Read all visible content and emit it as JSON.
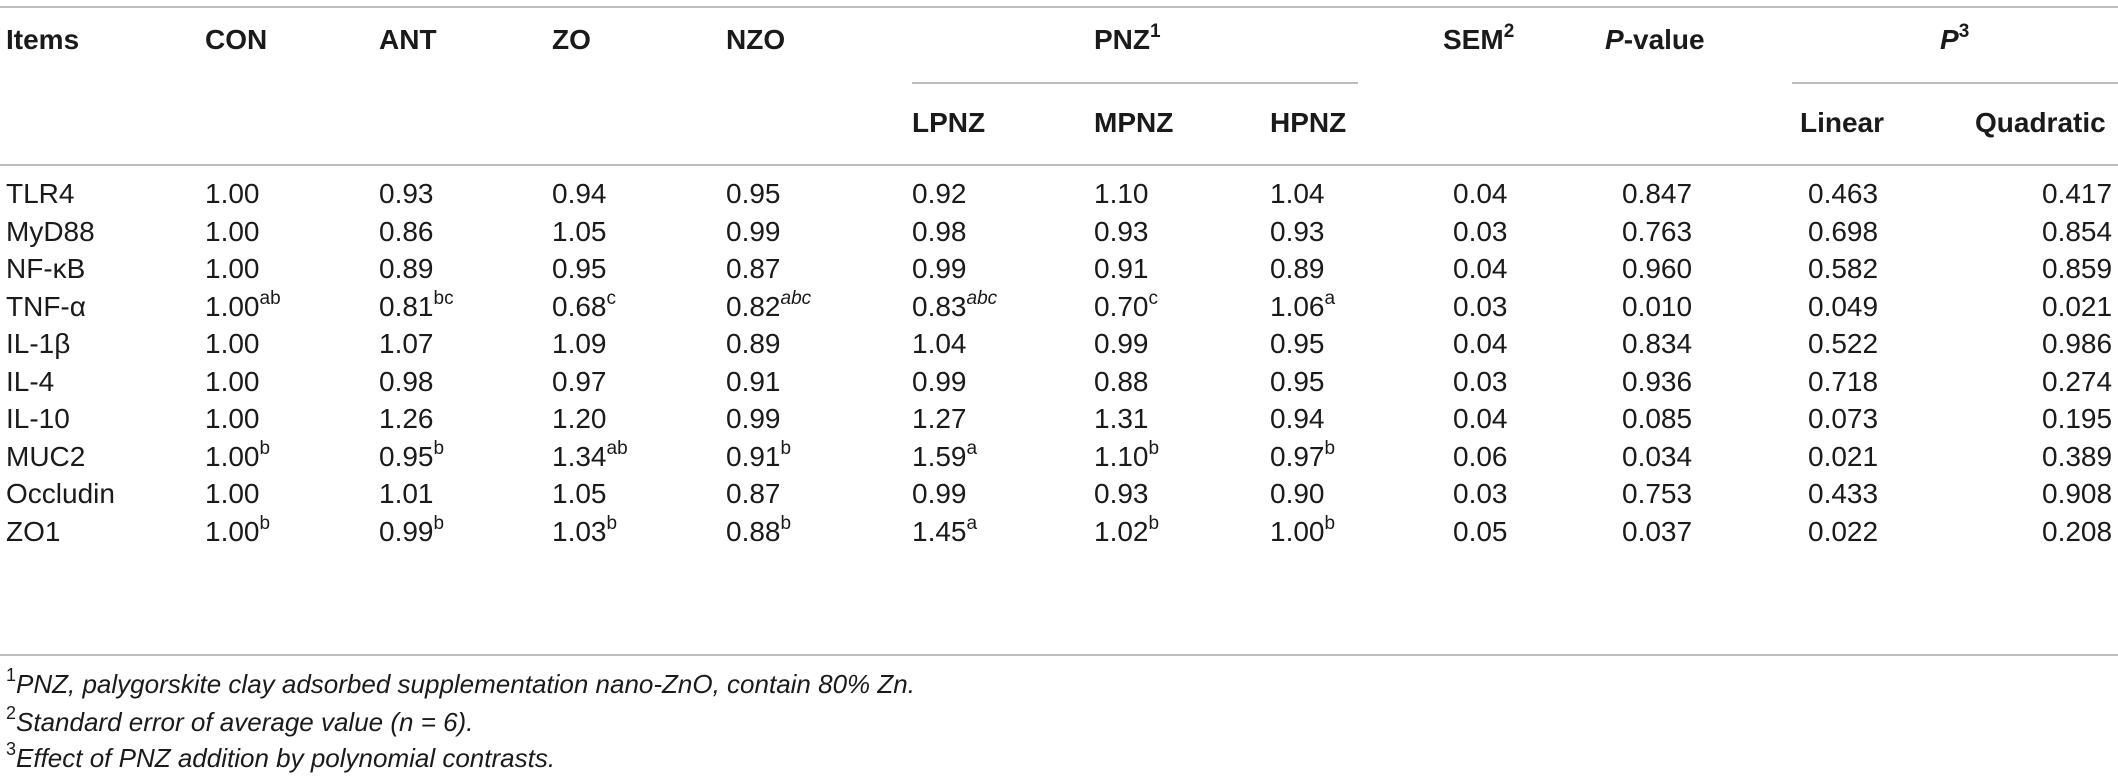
{
  "table": {
    "headers": {
      "items": "Items",
      "con": "CON",
      "ant": "ANT",
      "zo": "ZO",
      "nzo": "NZO",
      "pnz": "PNZ",
      "pnz_sup": "1",
      "sem": "SEM",
      "sem_sup": "2",
      "pvalue_p": "P",
      "pvalue_rest": "-value",
      "p3": "P",
      "p3_sup": "3",
      "lpnz": "LPNZ",
      "mpnz": "MPNZ",
      "hpnz": "HPNZ",
      "linear": "Linear",
      "quadratic": "Quadratic"
    },
    "rows": [
      {
        "item": "TLR4",
        "vals": [
          [
            "1.00",
            ""
          ],
          [
            "0.93",
            ""
          ],
          [
            "0.94",
            ""
          ],
          [
            "0.95",
            ""
          ],
          [
            "0.92",
            ""
          ],
          [
            "1.10",
            ""
          ],
          [
            "1.04",
            ""
          ]
        ],
        "sem": "0.04",
        "p": "0.847",
        "lin": "0.463",
        "quad": "0.417"
      },
      {
        "item": "MyD88",
        "vals": [
          [
            "1.00",
            ""
          ],
          [
            "0.86",
            ""
          ],
          [
            "1.05",
            ""
          ],
          [
            "0.99",
            ""
          ],
          [
            "0.98",
            ""
          ],
          [
            "0.93",
            ""
          ],
          [
            "0.93",
            ""
          ]
        ],
        "sem": "0.03",
        "p": "0.763",
        "lin": "0.698",
        "quad": "0.854"
      },
      {
        "item": "NF-κB",
        "vals": [
          [
            "1.00",
            ""
          ],
          [
            "0.89",
            ""
          ],
          [
            "0.95",
            ""
          ],
          [
            "0.87",
            ""
          ],
          [
            "0.99",
            ""
          ],
          [
            "0.91",
            ""
          ],
          [
            "0.89",
            ""
          ]
        ],
        "sem": "0.04",
        "p": "0.960",
        "lin": "0.582",
        "quad": "0.859"
      },
      {
        "item": "TNF-α",
        "vals": [
          [
            "1.00",
            "ab"
          ],
          [
            "0.81",
            "bc"
          ],
          [
            "0.68",
            "c"
          ],
          [
            "0.82",
            "abc"
          ],
          [
            "0.83",
            "abc"
          ],
          [
            "0.70",
            "c"
          ],
          [
            "1.06",
            "a"
          ]
        ],
        "sem": "0.03",
        "p": "0.010",
        "lin": "0.049",
        "quad": "0.021"
      },
      {
        "item": "IL-1β",
        "vals": [
          [
            "1.00",
            ""
          ],
          [
            "1.07",
            ""
          ],
          [
            "1.09",
            ""
          ],
          [
            "0.89",
            ""
          ],
          [
            "1.04",
            ""
          ],
          [
            "0.99",
            ""
          ],
          [
            "0.95",
            ""
          ]
        ],
        "sem": "0.04",
        "p": "0.834",
        "lin": "0.522",
        "quad": "0.986"
      },
      {
        "item": "IL-4",
        "vals": [
          [
            "1.00",
            ""
          ],
          [
            "0.98",
            ""
          ],
          [
            "0.97",
            ""
          ],
          [
            "0.91",
            ""
          ],
          [
            "0.99",
            ""
          ],
          [
            "0.88",
            ""
          ],
          [
            "0.95",
            ""
          ]
        ],
        "sem": "0.03",
        "p": "0.936",
        "lin": "0.718",
        "quad": "0.274"
      },
      {
        "item": "IL-10",
        "vals": [
          [
            "1.00",
            ""
          ],
          [
            "1.26",
            ""
          ],
          [
            "1.20",
            ""
          ],
          [
            "0.99",
            ""
          ],
          [
            "1.27",
            ""
          ],
          [
            "1.31",
            ""
          ],
          [
            "0.94",
            ""
          ]
        ],
        "sem": "0.04",
        "p": "0.085",
        "lin": "0.073",
        "quad": "0.195"
      },
      {
        "item": "MUC2",
        "vals": [
          [
            "1.00",
            "b"
          ],
          [
            "0.95",
            "b"
          ],
          [
            "1.34",
            "ab"
          ],
          [
            "0.91",
            "b"
          ],
          [
            "1.59",
            "a"
          ],
          [
            "1.10",
            "b"
          ],
          [
            "0.97",
            "b"
          ]
        ],
        "sem": "0.06",
        "p": "0.034",
        "lin": "0.021",
        "quad": "0.389"
      },
      {
        "item": "Occludin",
        "vals": [
          [
            "1.00",
            ""
          ],
          [
            "1.01",
            ""
          ],
          [
            "1.05",
            ""
          ],
          [
            "0.87",
            ""
          ],
          [
            "0.99",
            ""
          ],
          [
            "0.93",
            ""
          ],
          [
            "0.90",
            ""
          ]
        ],
        "sem": "0.03",
        "p": "0.753",
        "lin": "0.433",
        "quad": "0.908"
      },
      {
        "item": "ZO1",
        "vals": [
          [
            "1.00",
            "b"
          ],
          [
            "0.99",
            "b"
          ],
          [
            "1.03",
            "b"
          ],
          [
            "0.88",
            "b"
          ],
          [
            "1.45",
            "a"
          ],
          [
            "1.02",
            "b"
          ],
          [
            "1.00",
            "b"
          ]
        ],
        "sem": "0.05",
        "p": "0.037",
        "lin": "0.022",
        "quad": "0.208"
      }
    ]
  },
  "footnotes": [
    {
      "num": "1",
      "text": "PNZ, palygorskite clay adsorbed supplementation nano-ZnO, contain 80% Zn."
    },
    {
      "num": "2",
      "text": "Standard error of average value (n = 6)."
    },
    {
      "num": "3",
      "text": "Effect of PNZ addition by polynomial contrasts."
    }
  ]
}
